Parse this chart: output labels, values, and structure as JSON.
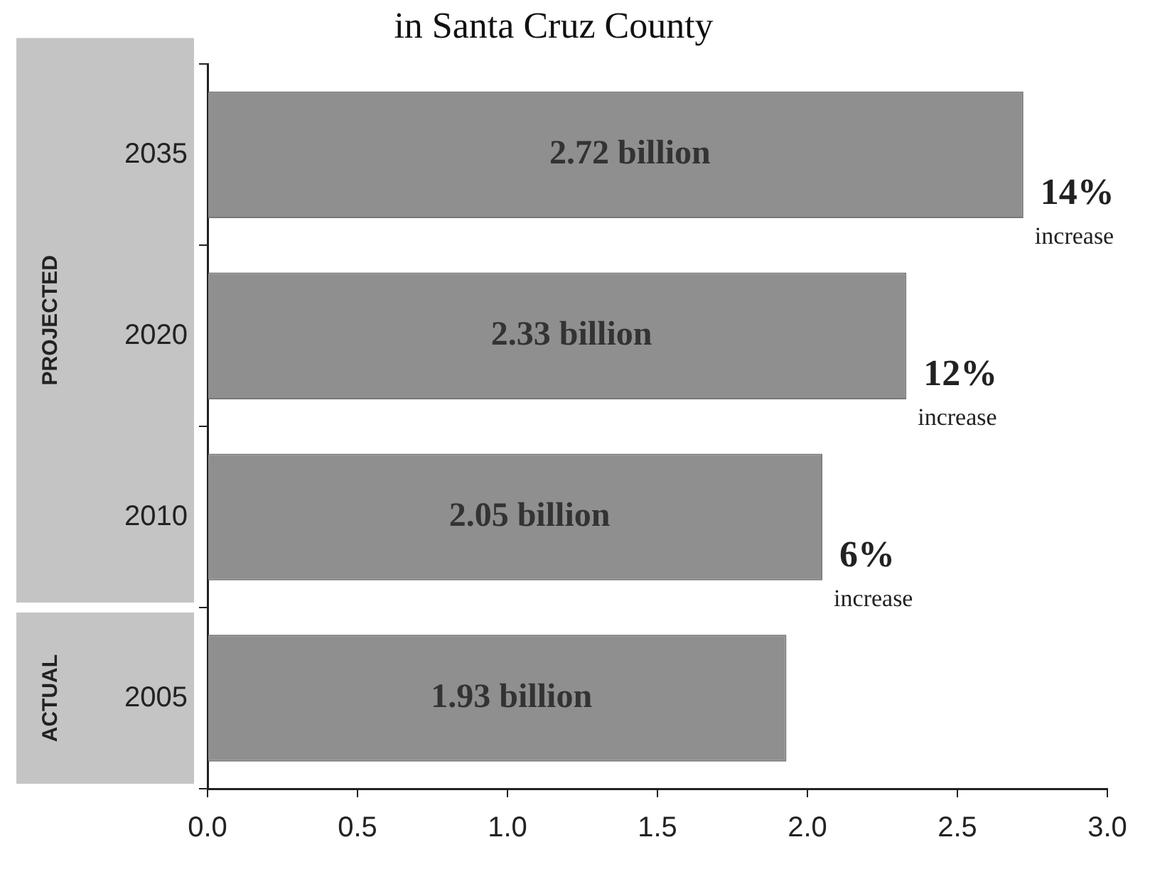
{
  "chart_data": {
    "type": "bar",
    "orientation": "horizontal",
    "title": "in Santa Cruz County",
    "categories": [
      "2035",
      "2020",
      "2010",
      "2005"
    ],
    "values": [
      2.72,
      2.33,
      2.05,
      1.93
    ],
    "color": "#8f8f8f",
    "value_labels": [
      "2.72 billion",
      "2.33 billion",
      "2.05 billion",
      "1.93 billion"
    ],
    "xlim": [
      0,
      3
    ],
    "xticks": [
      {
        "value": 0,
        "label": "0.0"
      },
      {
        "value": 0.5,
        "label": "0.5"
      },
      {
        "value": 1,
        "label": "1.0"
      },
      {
        "value": 1.5,
        "label": "1.5"
      },
      {
        "value": 2,
        "label": "2.0"
      },
      {
        "value": 2.5,
        "label": "2.5"
      },
      {
        "value": 3,
        "label": "3.0"
      }
    ],
    "grid": false,
    "legend": false,
    "annotations": [
      "PROJECTED",
      "ACTUAL",
      {
        "text": "14% increase",
        "x": 2.72,
        "y": "2035"
      },
      {
        "text": "12% increase",
        "x": 2.33,
        "y": "2020"
      },
      {
        "text": "6% increase",
        "x": 2.05,
        "y": "2010"
      }
    ]
  }
}
